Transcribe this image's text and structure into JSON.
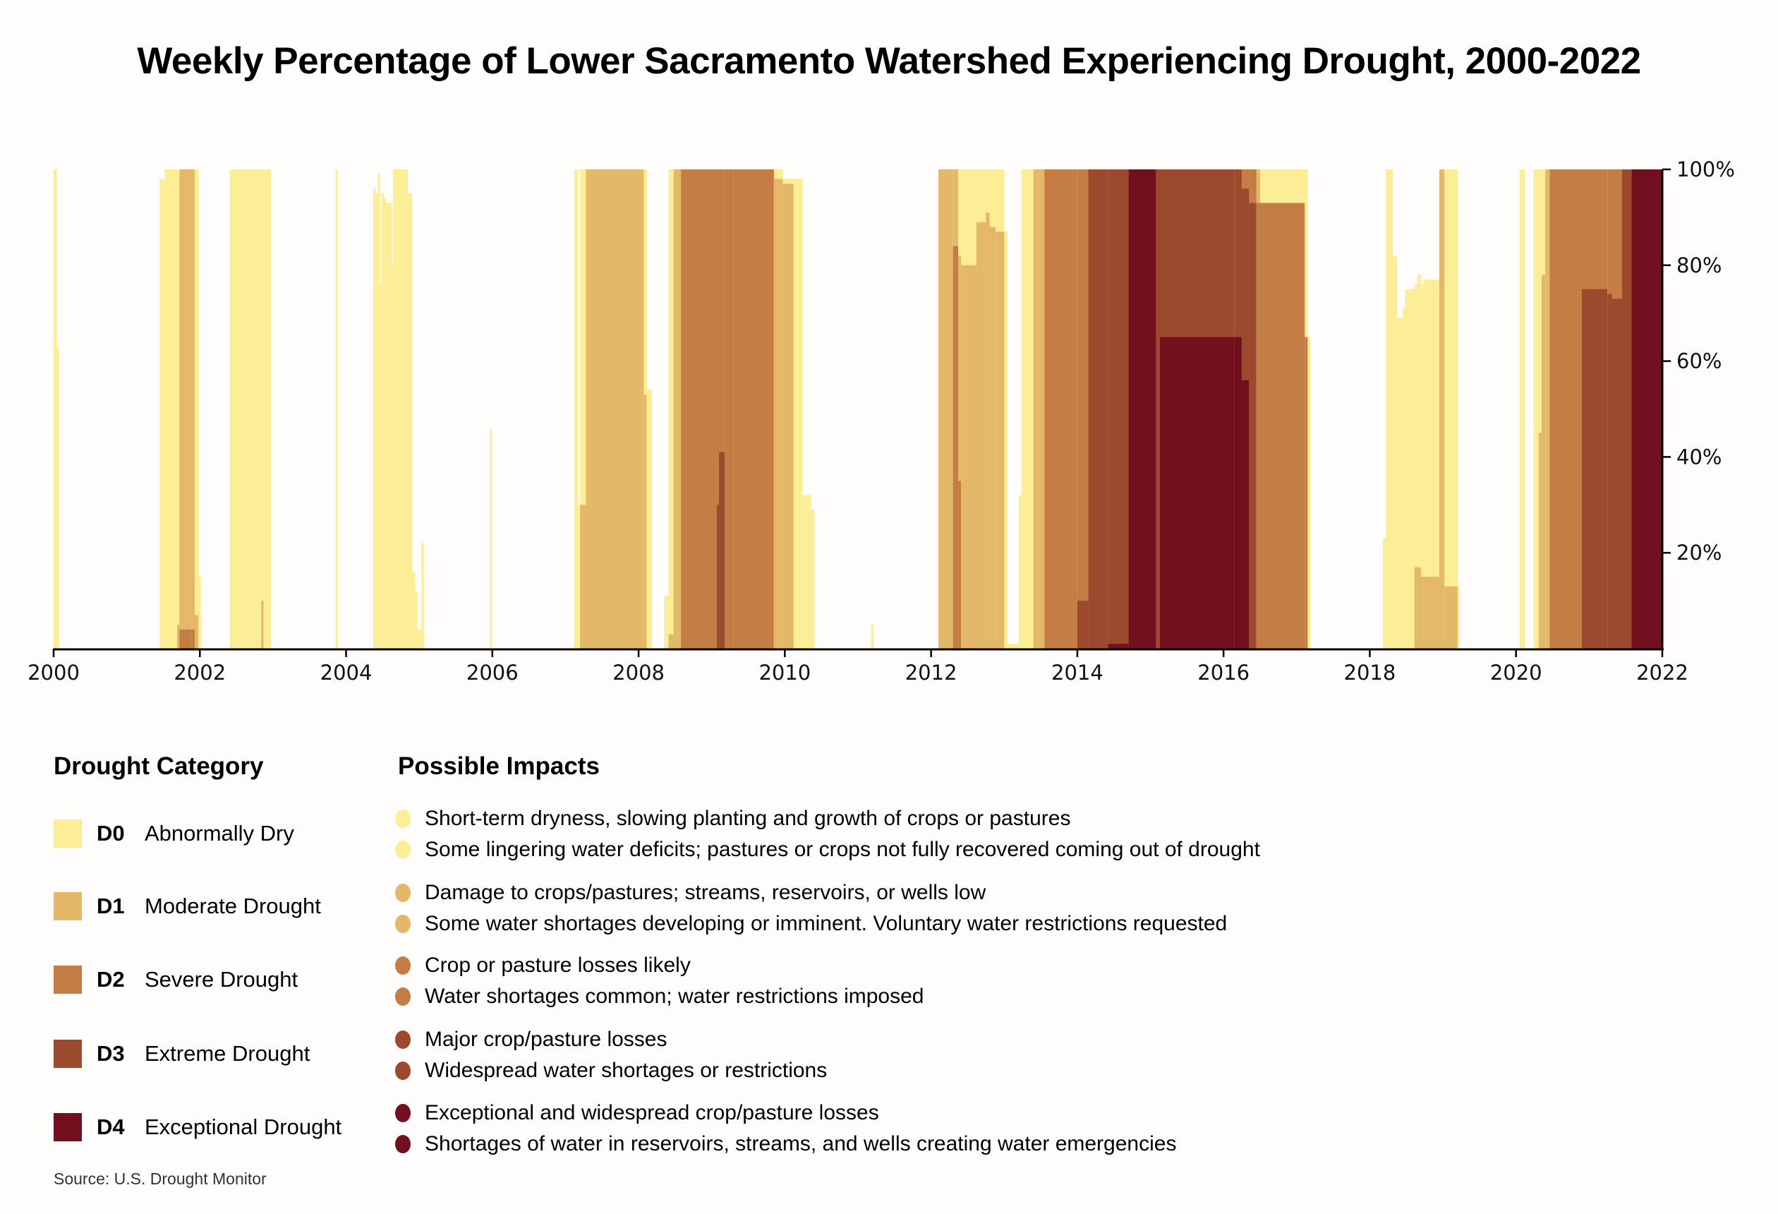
{
  "title": "Weekly Percentage of Lower Sacramento Watershed Experiencing Drought, 2000-2022",
  "legend": {
    "category_heading": "Drought Category",
    "impacts_heading": "Possible Impacts",
    "categories": [
      {
        "code": "D0",
        "label": "Abnormally Dry",
        "color": "#fbee96"
      },
      {
        "code": "D1",
        "label": "Moderate Drought",
        "color": "#e3b868"
      },
      {
        "code": "D2",
        "label": "Severe Drought",
        "color": "#c47e45"
      },
      {
        "code": "D3",
        "label": "Extreme Drought",
        "color": "#9c4a2e"
      },
      {
        "code": "D4",
        "label": "Exceptional Drought",
        "color": "#721020"
      }
    ],
    "impacts": [
      {
        "category": "D0",
        "color": "#fbee96",
        "items": [
          "Short-term dryness, slowing planting and growth of crops or pastures",
          "Some lingering water deficits; pastures or crops not fully recovered coming out of drought"
        ]
      },
      {
        "category": "D1",
        "color": "#e3b868",
        "items": [
          "Damage to crops/pastures; streams, reservoirs, or wells low",
          "Some water shortages developing or imminent. Voluntary water restrictions requested"
        ]
      },
      {
        "category": "D2",
        "color": "#c47e45",
        "items": [
          "Crop or pasture losses likely",
          "Water shortages common; water restrictions imposed"
        ]
      },
      {
        "category": "D3",
        "color": "#9c4a2e",
        "items": [
          "Major crop/pasture losses",
          "Widespread water shortages or restrictions"
        ]
      },
      {
        "category": "D4",
        "color": "#721020",
        "items": [
          "Exceptional and widespread crop/pasture losses",
          "Shortages of water in reservoirs, streams, and wells creating water emergencies"
        ]
      }
    ]
  },
  "source": "Source: U.S. Drought Monitor",
  "chart_data": {
    "type": "area",
    "title": "Weekly Percentage of Lower Sacramento Watershed Experiencing Drought, 2000-2022",
    "xlabel": "",
    "ylabel": "",
    "xlim": [
      2000,
      2022
    ],
    "ylim": [
      0,
      100
    ],
    "x_ticks": [
      "2000",
      "2002",
      "2004",
      "2006",
      "2008",
      "2010",
      "2012",
      "2014",
      "2016",
      "2018",
      "2020",
      "2022"
    ],
    "y_ticks": [
      "20%",
      "40%",
      "60%",
      "80%",
      "100%"
    ],
    "y_tick_values": [
      20,
      40,
      60,
      80,
      100
    ],
    "y_axis_side": "right",
    "grid": false,
    "stacking": "cumulative (D0 includes D1-D4, etc.)",
    "series_names": [
      "D0",
      "D1",
      "D2",
      "D3",
      "D4"
    ],
    "segments_columns": [
      "start",
      "end",
      "D0",
      "D1",
      "D2",
      "D3",
      "D4"
    ],
    "segments": [
      [
        2000.0,
        2000.04,
        100,
        0,
        0,
        0,
        0
      ],
      [
        2000.04,
        2000.07,
        63,
        0,
        0,
        0,
        0
      ],
      [
        2001.45,
        2001.52,
        98,
        0,
        0,
        0,
        0
      ],
      [
        2001.52,
        2001.69,
        100,
        0,
        0,
        0,
        0
      ],
      [
        2001.69,
        2001.72,
        100,
        5,
        0,
        0,
        0
      ],
      [
        2001.72,
        2001.88,
        100,
        100,
        4,
        0,
        0
      ],
      [
        2001.88,
        2001.93,
        100,
        100,
        4,
        0,
        0
      ],
      [
        2001.93,
        2001.98,
        100,
        7,
        0,
        0,
        0
      ],
      [
        2001.98,
        2002.01,
        15,
        0,
        0,
        0,
        0
      ],
      [
        2002.41,
        2002.84,
        100,
        0,
        0,
        0,
        0
      ],
      [
        2002.84,
        2002.87,
        100,
        10,
        0,
        0,
        0
      ],
      [
        2002.87,
        2002.97,
        100,
        0,
        0,
        0,
        0
      ],
      [
        2003.86,
        2003.88,
        100,
        0,
        0,
        0,
        0
      ],
      [
        2004.37,
        2004.4,
        96,
        0,
        0,
        0,
        0
      ],
      [
        2004.4,
        2004.43,
        95,
        0,
        0,
        0,
        0
      ],
      [
        2004.43,
        2004.46,
        99,
        0,
        0,
        0,
        0
      ],
      [
        2004.46,
        2004.48,
        76,
        0,
        0,
        0,
        0
      ],
      [
        2004.48,
        2004.51,
        95,
        0,
        0,
        0,
        0
      ],
      [
        2004.51,
        2004.54,
        94,
        0,
        0,
        0,
        0
      ],
      [
        2004.54,
        2004.62,
        93,
        0,
        0,
        0,
        0
      ],
      [
        2004.62,
        2004.64,
        80,
        0,
        0,
        0,
        0
      ],
      [
        2004.64,
        2004.84,
        100,
        0,
        0,
        0,
        0
      ],
      [
        2004.84,
        2004.9,
        95,
        0,
        0,
        0,
        0
      ],
      [
        2004.9,
        2004.94,
        16,
        0,
        0,
        0,
        0
      ],
      [
        2004.94,
        2004.97,
        12,
        0,
        0,
        0,
        0
      ],
      [
        2004.97,
        2005.03,
        4,
        0,
        0,
        0,
        0
      ],
      [
        2005.03,
        2005.06,
        22,
        0,
        0,
        0,
        0
      ],
      [
        2005.97,
        2005.99,
        46,
        0,
        0,
        0,
        0
      ],
      [
        2007.12,
        2007.17,
        100,
        0,
        0,
        0,
        0
      ],
      [
        2007.17,
        2007.2,
        30,
        0,
        0,
        0,
        0
      ],
      [
        2007.2,
        2007.28,
        100,
        30,
        0,
        0,
        0
      ],
      [
        2007.28,
        2008.07,
        100,
        100,
        0,
        0,
        0
      ],
      [
        2008.07,
        2008.11,
        100,
        53,
        0,
        0,
        0
      ],
      [
        2008.11,
        2008.18,
        54,
        0,
        0,
        0,
        0
      ],
      [
        2008.35,
        2008.41,
        11,
        0,
        0,
        0,
        0
      ],
      [
        2008.41,
        2008.48,
        100,
        3,
        0,
        0,
        0
      ],
      [
        2008.48,
        2008.58,
        100,
        100,
        0,
        0,
        0
      ],
      [
        2008.58,
        2009.07,
        100,
        100,
        100,
        0,
        0
      ],
      [
        2009.07,
        2009.1,
        100,
        100,
        100,
        30,
        0
      ],
      [
        2009.1,
        2009.18,
        100,
        100,
        100,
        41,
        0
      ],
      [
        2009.18,
        2009.3,
        100,
        100,
        100,
        0,
        0
      ],
      [
        2009.3,
        2009.85,
        100,
        100,
        100,
        0,
        0
      ],
      [
        2009.85,
        2009.97,
        100,
        98,
        0,
        0,
        0
      ],
      [
        2009.97,
        2010.12,
        98,
        97,
        0,
        0,
        0
      ],
      [
        2010.12,
        2010.24,
        98,
        0,
        0,
        0,
        0
      ],
      [
        2010.24,
        2010.35,
        32,
        0,
        0,
        0,
        0
      ],
      [
        2010.35,
        2010.4,
        29,
        0,
        0,
        0,
        0
      ],
      [
        2011.18,
        2011.21,
        5,
        0,
        0,
        0,
        0
      ],
      [
        2012.1,
        2012.3,
        100,
        100,
        0,
        0,
        0
      ],
      [
        2012.3,
        2012.37,
        100,
        100,
        84,
        0,
        0
      ],
      [
        2012.37,
        2012.41,
        100,
        82,
        35,
        0,
        0
      ],
      [
        2012.41,
        2012.62,
        100,
        80,
        0,
        0,
        0
      ],
      [
        2012.62,
        2012.75,
        100,
        89,
        0,
        0,
        0
      ],
      [
        2012.75,
        2012.8,
        100,
        91,
        0,
        0,
        0
      ],
      [
        2012.8,
        2012.88,
        100,
        88,
        0,
        0,
        0
      ],
      [
        2012.88,
        2013.0,
        100,
        87,
        0,
        0,
        0
      ],
      [
        2013.0,
        2013.04,
        87,
        0,
        0,
        0,
        0
      ],
      [
        2013.04,
        2013.2,
        1,
        0,
        0,
        0,
        0
      ],
      [
        2013.2,
        2013.24,
        32,
        0,
        0,
        0,
        0
      ],
      [
        2013.24,
        2013.4,
        100,
        0,
        0,
        0,
        0
      ],
      [
        2013.4,
        2013.55,
        100,
        100,
        0,
        0,
        0
      ],
      [
        2013.55,
        2014.0,
        100,
        100,
        100,
        0,
        0
      ],
      [
        2014.0,
        2014.15,
        100,
        100,
        100,
        10,
        0
      ],
      [
        2014.15,
        2014.42,
        100,
        100,
        100,
        100,
        0
      ],
      [
        2014.42,
        2014.7,
        100,
        100,
        100,
        100,
        1
      ],
      [
        2014.7,
        2015.08,
        100,
        100,
        100,
        100,
        100
      ],
      [
        2015.08,
        2015.13,
        100,
        100,
        100,
        100,
        0
      ],
      [
        2015.13,
        2016.15,
        100,
        100,
        100,
        100,
        65
      ],
      [
        2016.15,
        2016.25,
        100,
        100,
        100,
        100,
        65
      ],
      [
        2016.25,
        2016.35,
        100,
        100,
        100,
        96,
        56
      ],
      [
        2016.35,
        2016.45,
        100,
        100,
        100,
        93,
        0
      ],
      [
        2016.45,
        2016.5,
        100,
        100,
        93,
        0,
        0
      ],
      [
        2016.5,
        2017.11,
        100,
        93,
        93,
        0,
        0
      ],
      [
        2017.11,
        2017.15,
        100,
        65,
        65,
        0,
        0
      ],
      [
        2017.15,
        2017.18,
        65,
        0,
        0,
        0,
        0
      ],
      [
        2018.18,
        2018.22,
        23,
        0,
        0,
        0,
        0
      ],
      [
        2018.22,
        2018.31,
        100,
        0,
        0,
        0,
        0
      ],
      [
        2018.31,
        2018.37,
        82,
        0,
        0,
        0,
        0
      ],
      [
        2018.37,
        2018.45,
        69,
        0,
        0,
        0,
        0
      ],
      [
        2018.45,
        2018.48,
        71,
        0,
        0,
        0,
        0
      ],
      [
        2018.48,
        2018.61,
        75,
        0,
        0,
        0,
        0
      ],
      [
        2018.61,
        2018.65,
        76,
        17,
        0,
        0,
        0
      ],
      [
        2018.65,
        2018.7,
        78,
        17,
        0,
        0,
        0
      ],
      [
        2018.7,
        2018.74,
        76,
        15,
        0,
        0,
        0
      ],
      [
        2018.74,
        2018.95,
        77,
        15,
        0,
        0,
        0
      ],
      [
        2018.95,
        2019.02,
        100,
        100,
        0,
        0,
        0
      ],
      [
        2019.02,
        2019.09,
        100,
        13,
        0,
        0,
        0
      ],
      [
        2019.09,
        2019.2,
        100,
        13,
        0,
        0,
        0
      ],
      [
        2019.2,
        2019.22,
        13,
        0,
        0,
        0,
        0
      ],
      [
        2020.05,
        2020.12,
        100,
        0,
        0,
        0,
        0
      ],
      [
        2020.24,
        2020.31,
        100,
        0,
        0,
        0,
        0
      ],
      [
        2020.31,
        2020.35,
        100,
        45,
        0,
        0,
        0
      ],
      [
        2020.35,
        2020.4,
        100,
        78,
        0,
        0,
        0
      ],
      [
        2020.4,
        2020.46,
        100,
        100,
        0,
        0,
        0
      ],
      [
        2020.46,
        2020.9,
        100,
        100,
        100,
        0,
        0
      ],
      [
        2020.9,
        2021.25,
        100,
        100,
        100,
        75,
        0
      ],
      [
        2021.25,
        2021.31,
        100,
        100,
        100,
        74,
        0
      ],
      [
        2021.31,
        2021.45,
        100,
        100,
        100,
        73,
        0
      ],
      [
        2021.45,
        2021.58,
        100,
        100,
        100,
        100,
        0
      ],
      [
        2021.58,
        2022.0,
        100,
        100,
        100,
        100,
        100
      ]
    ]
  }
}
